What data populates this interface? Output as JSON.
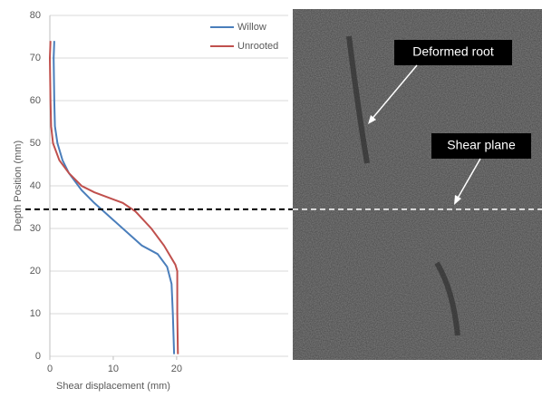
{
  "chart_data": {
    "type": "line",
    "xlabel": "Shear displacement (mm)",
    "ylabel": "Depth Position (mm)",
    "xlim": [
      0,
      37.6
    ],
    "xticks": [
      0,
      10,
      20
    ],
    "ylim": [
      0,
      80
    ],
    "yticks": [
      0,
      10,
      20,
      30,
      40,
      50,
      60,
      70,
      80
    ],
    "grid": true,
    "series": [
      {
        "name": "Willow",
        "color": "#4a7ebb",
        "x": [
          19.6,
          19.4,
          19.2,
          18.5,
          17,
          14.5,
          13,
          10,
          7,
          5,
          3,
          2,
          1.2,
          0.8,
          0.7,
          0.6,
          0.7
        ],
        "values": [
          0.5,
          10,
          17,
          21,
          24,
          26,
          28,
          32,
          36,
          39,
          43,
          46,
          50,
          54,
          60,
          70,
          74
        ]
      },
      {
        "name": "Unrooted",
        "color": "#c0504d",
        "x": [
          20.2,
          20.1,
          20.1,
          19.8,
          18,
          16,
          13.5,
          11.5,
          7,
          5,
          3,
          1.5,
          0.5,
          0.2,
          0.1,
          0,
          0.1
        ],
        "values": [
          0.5,
          10,
          20,
          21.5,
          26,
          30,
          34,
          36,
          38.5,
          40,
          43,
          46,
          50,
          54,
          60,
          70,
          74
        ]
      }
    ],
    "shear_plane_depth": 34.5,
    "annotations": [
      "Deformed root",
      "Shear plane"
    ]
  }
}
